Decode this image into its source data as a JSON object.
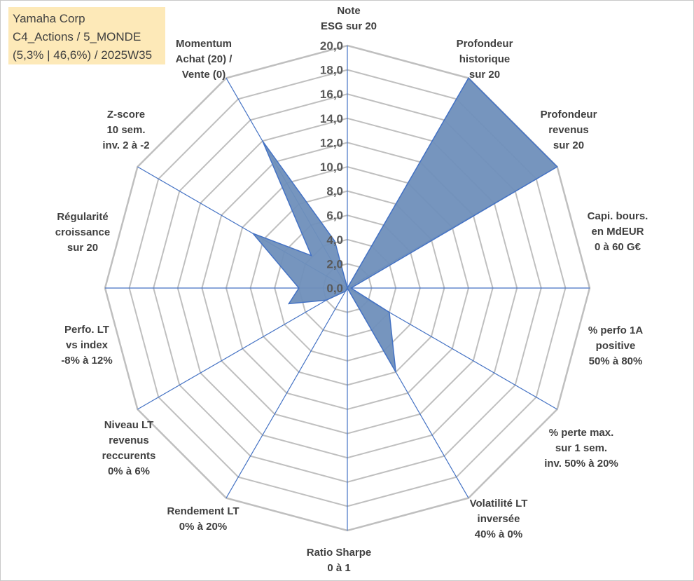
{
  "info": {
    "line1": "Yamaha Corp",
    "line2": "C4_Actions / 5_MONDE",
    "line3": "(5,3% | 46,6%) / 2025W35"
  },
  "chart_data": {
    "type": "radar",
    "rmin": 0,
    "rmax": 20,
    "tick_step": 2,
    "tick_labels": [
      "0,0",
      "2,0",
      "4,0",
      "6,0",
      "8,0",
      "10,0",
      "12,0",
      "14,0",
      "16,0",
      "18,0",
      "20,0"
    ],
    "grid": true,
    "fill_color": "#6f8fbb",
    "line_color": "#4472c4",
    "grid_color": "#bfbfbf",
    "axes": [
      {
        "label": [
          "Note",
          "ESG sur 20"
        ],
        "value": 0
      },
      {
        "label": [
          "Profondeur",
          "historique",
          "sur 20"
        ],
        "value": 20
      },
      {
        "label": [
          "Profondeur",
          "revenus",
          "sur 20"
        ],
        "value": 20
      },
      {
        "label": [
          "Capi. bours.",
          "en MdEUR",
          "0 à 60 G€"
        ],
        "value": 0.3
      },
      {
        "label": [
          "% perfo 1A",
          "positive",
          "50% à 80%"
        ],
        "value": 4
      },
      {
        "label": [
          "% perte max.",
          "sur 1 sem.",
          "inv. 50% à 20%"
        ],
        "value": 8
      },
      {
        "label": [
          "Volatilité LT",
          "inversée",
          "40% à 0%"
        ],
        "value": 0
      },
      {
        "label": [
          "Ratio Sharpe",
          "0 à 1"
        ],
        "value": 0.3
      },
      {
        "label": [
          "Rendement LT",
          "0% à 20%"
        ],
        "value": 2
      },
      {
        "label": [
          "Niveau LT",
          "revenus",
          "reccurents",
          "0% à 6%"
        ],
        "value": 5
      },
      {
        "label": [
          "Perfo. LT",
          "vs index",
          "-8% à 12%"
        ],
        "value": 4
      },
      {
        "label": [
          "Régularité",
          "croissance",
          "sur 20"
        ],
        "value": 9
      },
      {
        "label": [
          "Z-score",
          "10 sem.",
          "inv. 2 à -2"
        ],
        "value": 4
      },
      {
        "label": [
          "Momentum",
          "Achat (20) /",
          "Vente (0)"
        ],
        "value": 14
      },
      {
        "label": [
          "",
          ""
        ],
        "value": 4
      }
    ]
  }
}
